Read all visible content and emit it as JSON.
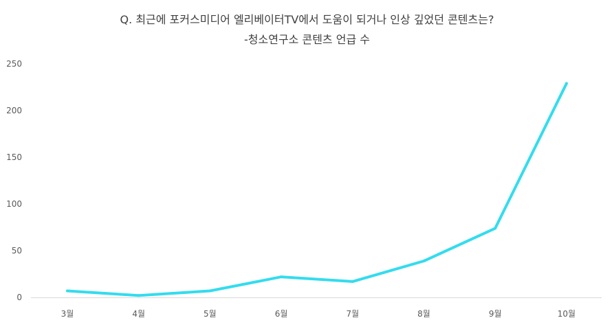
{
  "chart_data": {
    "type": "line",
    "title_lines": [
      "Q. 최근에 포커스미디어 엘리베이터TV에서 도움이 되거나 인상 깊었던 콘텐츠는?",
      "-청소연구소 콘텐츠 언급 수"
    ],
    "categories": [
      "3월",
      "4월",
      "5월",
      "6월",
      "7월",
      "8월",
      "9월",
      "10월"
    ],
    "series": [
      {
        "values": [
          7,
          2,
          7,
          22,
          17,
          39,
          74,
          229
        ]
      }
    ],
    "ylim": [
      0,
      250
    ],
    "yticks": [
      0,
      50,
      100,
      150,
      200,
      250
    ],
    "ytick_labels": [
      "0",
      "50",
      "100",
      "150",
      "200",
      "250"
    ],
    "grid": false,
    "legend": "none",
    "colors": {
      "line": "#33dcee",
      "axis": "#d9d9d9",
      "text": "#404040",
      "tick_text": "#595959"
    }
  }
}
